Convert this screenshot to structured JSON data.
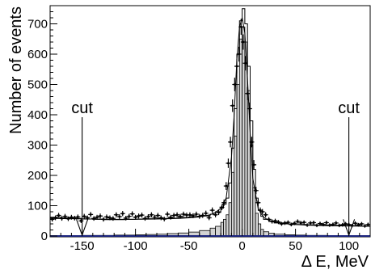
{
  "chart_data": {
    "type": "histogram",
    "xlabel": "Δ E, MeV",
    "ylabel": "Number of events",
    "xlim": [
      -180,
      120
    ],
    "ylim": [
      0,
      760
    ],
    "x_ticks": [
      -150,
      -100,
      -50,
      0,
      50,
      100
    ],
    "y_ticks": [
      0,
      100,
      200,
      300,
      400,
      500,
      600,
      700
    ],
    "grid": false,
    "annotations": [
      {
        "text": "cut",
        "x": -150
      },
      {
        "text": "cut",
        "x": 100
      }
    ],
    "bin_width": 2.5,
    "series": [
      {
        "kind": "filled_histogram",
        "fill": "#d3d3d3",
        "x": [
          -180,
          -170,
          -160,
          -150,
          -140,
          -130,
          -120,
          -110,
          -100,
          -90,
          -80,
          -70,
          -60,
          -50,
          -40,
          -30,
          -25,
          -20,
          -17.5,
          -15,
          -12.5,
          -10,
          -7.5,
          -5,
          -2.5,
          0,
          2.5,
          5,
          7.5,
          10,
          12.5,
          15,
          17.5,
          20,
          25,
          30,
          40,
          50,
          60,
          70,
          80,
          90,
          100,
          110,
          120
        ],
        "values": [
          1,
          1,
          1,
          2,
          2,
          2,
          3,
          3,
          4,
          5,
          6,
          8,
          10,
          13,
          18,
          26,
          32,
          45,
          55,
          70,
          110,
          210,
          330,
          500,
          650,
          690,
          640,
          480,
          300,
          160,
          75,
          40,
          22,
          14,
          9,
          6,
          4,
          3,
          2,
          2,
          1,
          1,
          1,
          1,
          1
        ]
      },
      {
        "kind": "outline_histogram",
        "x": [
          -180,
          -170,
          -160,
          -150,
          -140,
          -130,
          -120,
          -110,
          -100,
          -90,
          -80,
          -70,
          -60,
          -50,
          -40,
          -30,
          -25,
          -20,
          -17.5,
          -15,
          -12.5,
          -10,
          -7.5,
          -5,
          -2.5,
          0,
          2.5,
          5,
          7.5,
          10,
          12.5,
          15,
          17.5,
          20,
          25,
          30,
          40,
          50,
          60,
          70,
          80,
          90,
          100,
          110,
          120
        ],
        "values": [
          62,
          60,
          58,
          56,
          55,
          54,
          54,
          55,
          56,
          57,
          58,
          59,
          61,
          63,
          66,
          72,
          80,
          92,
          105,
          125,
          175,
          290,
          420,
          600,
          710,
          750,
          700,
          560,
          380,
          220,
          125,
          85,
          65,
          55,
          48,
          43,
          40,
          38,
          37,
          36,
          35,
          34,
          34,
          33,
          33
        ]
      },
      {
        "kind": "fit_curve",
        "x": [
          -180,
          -160,
          -140,
          -120,
          -100,
          -80,
          -60,
          -50,
          -40,
          -30,
          -25,
          -20,
          -15,
          -10,
          -7.5,
          -5,
          -2.5,
          0,
          2.5,
          5,
          7.5,
          10,
          15,
          20,
          25,
          30,
          40,
          50,
          60,
          80,
          100,
          120
        ],
        "values": [
          58,
          57,
          56,
          55,
          55,
          56,
          58,
          60,
          63,
          70,
          78,
          92,
          125,
          260,
          400,
          580,
          690,
          720,
          670,
          520,
          340,
          190,
          90,
          62,
          52,
          46,
          41,
          38,
          36,
          34,
          33,
          32
        ]
      },
      {
        "kind": "data_points",
        "x": [
          -178,
          -175,
          -172,
          -169,
          -166,
          -163,
          -160,
          -157,
          -154,
          -151,
          -148,
          -145,
          -142,
          -139,
          -136,
          -133,
          -130,
          -127,
          -124,
          -121,
          -118,
          -115,
          -112,
          -109,
          -106,
          -103,
          -100,
          -97,
          -94,
          -91,
          -88,
          -85,
          -82,
          -79,
          -76,
          -73,
          -70,
          -67,
          -64,
          -61,
          -58,
          -55,
          -52,
          -49,
          -46,
          -43,
          -40,
          -37,
          -34,
          -31,
          -28,
          -25,
          -22,
          -19,
          -17,
          -15,
          -13,
          -11,
          -9,
          -7,
          -5,
          -3,
          -1,
          1,
          3,
          5,
          7,
          9,
          11,
          13,
          15,
          17,
          19,
          22,
          25,
          28,
          31,
          34,
          37,
          40,
          43,
          46,
          49,
          52,
          55,
          58,
          61,
          64,
          67,
          70,
          73,
          76,
          79,
          82,
          85,
          88,
          91,
          94,
          97,
          100,
          103,
          106,
          109,
          112,
          115,
          118
        ],
        "values": [
          55,
          60,
          68,
          58,
          65,
          57,
          62,
          59,
          63,
          50,
          65,
          60,
          71,
          58,
          62,
          66,
          55,
          63,
          60,
          58,
          70,
          64,
          74,
          59,
          65,
          73,
          62,
          66,
          69,
          58,
          64,
          70,
          62,
          68,
          60,
          56,
          72,
          62,
          68,
          70,
          65,
          72,
          69,
          70,
          67,
          72,
          65,
          68,
          75,
          60,
          85,
          70,
          78,
          95,
          110,
          165,
          240,
          310,
          430,
          500,
          560,
          600,
          690,
          640,
          570,
          470,
          420,
          310,
          235,
          150,
          110,
          85,
          80,
          70,
          55,
          48,
          50,
          46,
          40,
          43,
          45,
          38,
          42,
          48,
          43,
          45,
          36,
          43,
          44,
          35,
          41,
          38,
          44,
          36,
          38,
          43,
          35,
          37,
          40,
          38,
          34,
          42,
          37,
          40,
          33,
          38
        ]
      }
    ]
  }
}
